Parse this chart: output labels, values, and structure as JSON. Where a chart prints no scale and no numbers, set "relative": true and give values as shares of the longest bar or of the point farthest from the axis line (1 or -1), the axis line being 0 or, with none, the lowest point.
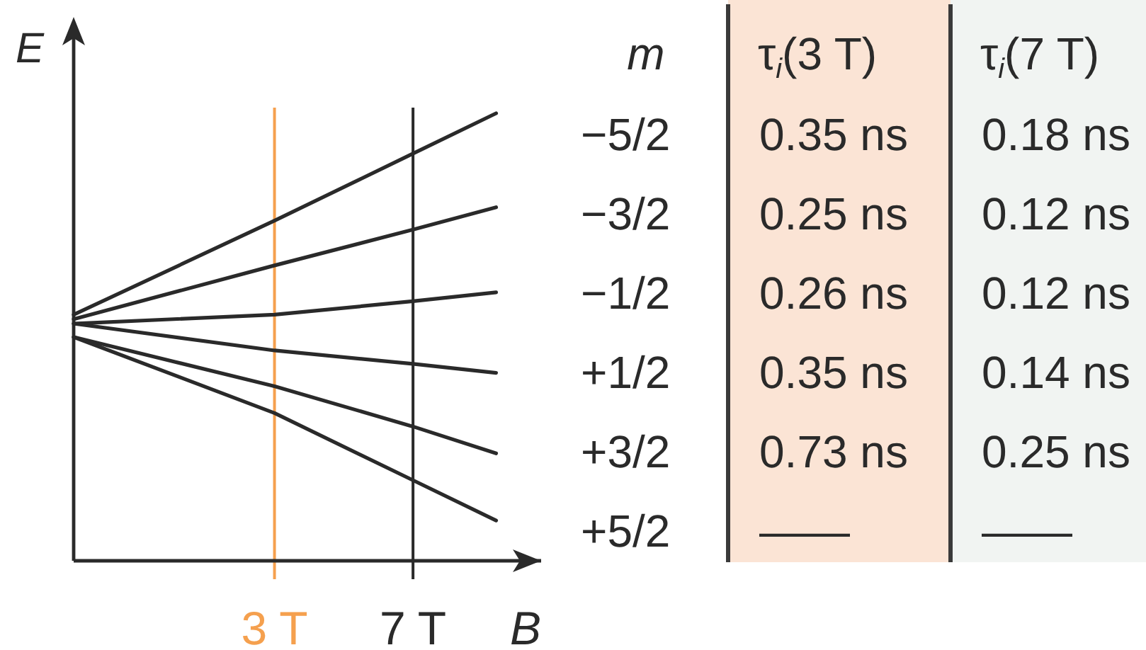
{
  "chart_data": [
    {
      "type": "line",
      "xlabel": "B",
      "ylabel": "E",
      "relative": true,
      "xlim": [
        -2.8,
        10.7
      ],
      "xticks": [
        {
          "value": 3,
          "label": "3 T"
        },
        {
          "value": 7,
          "label": "7 T"
        }
      ],
      "x": [
        -2.8,
        3,
        7,
        9.4
      ],
      "series": [
        {
          "color": "#2a2a2a",
          "values": [
            0.55,
            0.76,
            0.91,
            1
          ]
        },
        {
          "color": "#2a2a2a",
          "values": [
            0.54,
            0.66,
            0.74,
            0.79
          ]
        },
        {
          "color": "#2a2a2a",
          "values": [
            0.53,
            0.55,
            0.58,
            0.6
          ]
        },
        {
          "color": "#2a2a2a",
          "values": [
            0.53,
            0.47,
            0.44,
            0.42
          ]
        },
        {
          "color": "#2a2a2a",
          "values": [
            0.5,
            0.39,
            0.3,
            0.24
          ]
        },
        {
          "color": "#2a2a2a",
          "values": [
            0.5,
            0.33,
            0.18,
            0.09
          ]
        }
      ],
      "ref_lines": [
        {
          "axis": "x",
          "value": 3,
          "color": "#f5a04e"
        },
        {
          "axis": "x",
          "value": 7,
          "color": "#2a2a2a"
        }
      ]
    },
    {
      "type": "other",
      "ylabel": "m",
      "categories": [
        "τ$_{i}$(3 T)",
        "τ$_{i}$(7 T)"
      ],
      "y_categories": [
        "−5/2",
        "−3/2",
        "−1/2",
        "+1/2",
        "+3/2",
        "+5/2"
      ],
      "cell_labels": [
        [
          "0.35 ns",
          "0.18 ns"
        ],
        [
          "0.25 ns",
          "0.12 ns"
        ],
        [
          "0.26 ns",
          "0.12 ns"
        ],
        [
          "0.35 ns",
          "0.14 ns"
        ],
        [
          "0.73 ns",
          "0.25 ns"
        ],
        [
          "——",
          "——"
        ]
      ],
      "colors": [
        "#fbe4d5",
        "#f1f4f2"
      ]
    }
  ]
}
